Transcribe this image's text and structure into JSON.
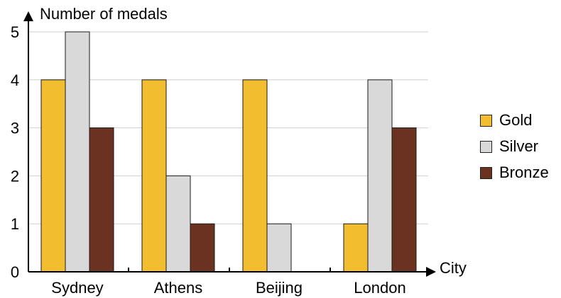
{
  "chart_data": {
    "type": "bar",
    "ylabel": "Number of medals",
    "xlabel": "City",
    "categories": [
      "Sydney",
      "Athens",
      "Beijing",
      "London"
    ],
    "series": [
      {
        "name": "Gold",
        "color": "#f2be30",
        "values": [
          4,
          4,
          4,
          1
        ]
      },
      {
        "name": "Silver",
        "color": "#d9d9d9",
        "values": [
          5,
          2,
          1,
          4
        ]
      },
      {
        "name": "Bronze",
        "color": "#6b3121",
        "values": [
          3,
          1,
          0,
          3
        ]
      }
    ],
    "ylim": [
      0,
      5
    ],
    "yticks": [
      "0",
      "1",
      "2",
      "3",
      "4",
      "5"
    ],
    "grid": true,
    "legend_position": "right"
  }
}
